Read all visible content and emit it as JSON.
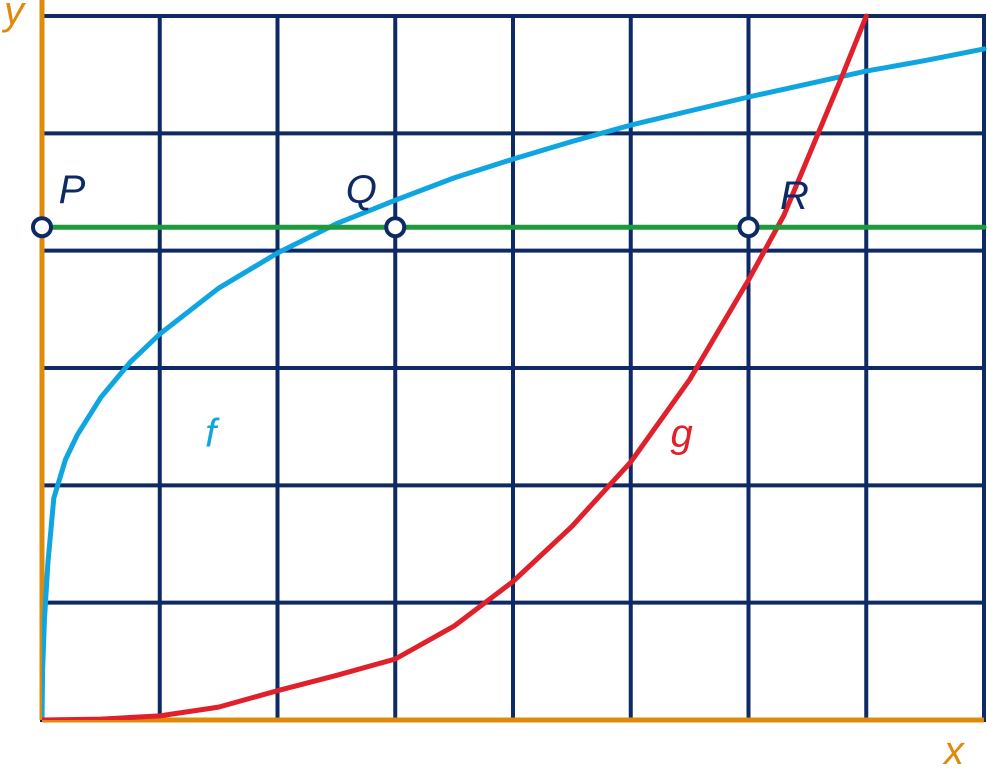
{
  "chart_data": {
    "type": "line",
    "xlim": [
      0,
      8
    ],
    "ylim": [
      0,
      6
    ],
    "grid": true,
    "xlabel": "x",
    "ylabel": "y",
    "series": [
      {
        "name": "f",
        "color": "#0ea5e0",
        "points": [
          [
            0,
            0
          ],
          [
            0.005,
            0.42
          ],
          [
            0.02,
            0.85
          ],
          [
            0.05,
            1.34
          ],
          [
            0.1,
            1.89
          ],
          [
            0.2,
            2.22
          ],
          [
            0.3,
            2.43
          ],
          [
            0.5,
            2.75
          ],
          [
            0.75,
            3.05
          ],
          [
            1,
            3.29
          ],
          [
            1.5,
            3.68
          ],
          [
            2,
            3.98
          ],
          [
            2.5,
            4.23
          ],
          [
            3,
            4.43
          ],
          [
            3.5,
            4.62
          ],
          [
            4,
            4.78
          ],
          [
            4.5,
            4.93
          ],
          [
            5,
            5.07
          ],
          [
            5.5,
            5.19
          ],
          [
            6,
            5.31
          ],
          [
            6.5,
            5.42
          ],
          [
            7,
            5.53
          ],
          [
            7.5,
            5.62
          ],
          [
            8,
            5.72
          ]
        ]
      },
      {
        "name": "g",
        "color": "#e0202a",
        "points": [
          [
            0,
            0
          ],
          [
            0.5,
            0.008
          ],
          [
            1,
            0.035
          ],
          [
            1.5,
            0.11
          ],
          [
            2,
            0.25
          ],
          [
            2.5,
            0.38
          ],
          [
            3,
            0.52
          ],
          [
            3.5,
            0.8
          ],
          [
            4,
            1.18
          ],
          [
            4.5,
            1.65
          ],
          [
            5,
            2.2
          ],
          [
            5.5,
            2.9
          ],
          [
            6,
            3.75
          ],
          [
            6.3,
            4.3
          ],
          [
            6.5,
            4.78
          ],
          [
            6.8,
            5.5
          ],
          [
            7,
            6.0
          ]
        ]
      },
      {
        "name": "",
        "color": "#1e9a3c",
        "points": [
          [
            0,
            4.2
          ],
          [
            8,
            4.2
          ]
        ]
      }
    ],
    "points": [
      {
        "label": "P",
        "x": 0,
        "y": 4.2
      },
      {
        "label": "Q",
        "x": 3,
        "y": 4.2
      },
      {
        "label": "R",
        "x": 6,
        "y": 4.2
      }
    ],
    "curve_labels": [
      {
        "label": "f",
        "x": 1.5,
        "y": 2.45,
        "color": "#0ea5e0"
      },
      {
        "label": "g",
        "x": 5.5,
        "y": 2.45,
        "color": "#e0202a"
      }
    ],
    "colors": {
      "grid": "#0d2a66",
      "axes": "#e08a0a",
      "point_fill": "#ffffff",
      "point_stroke": "#0d2a66",
      "point_label": "#0d2a66"
    }
  }
}
